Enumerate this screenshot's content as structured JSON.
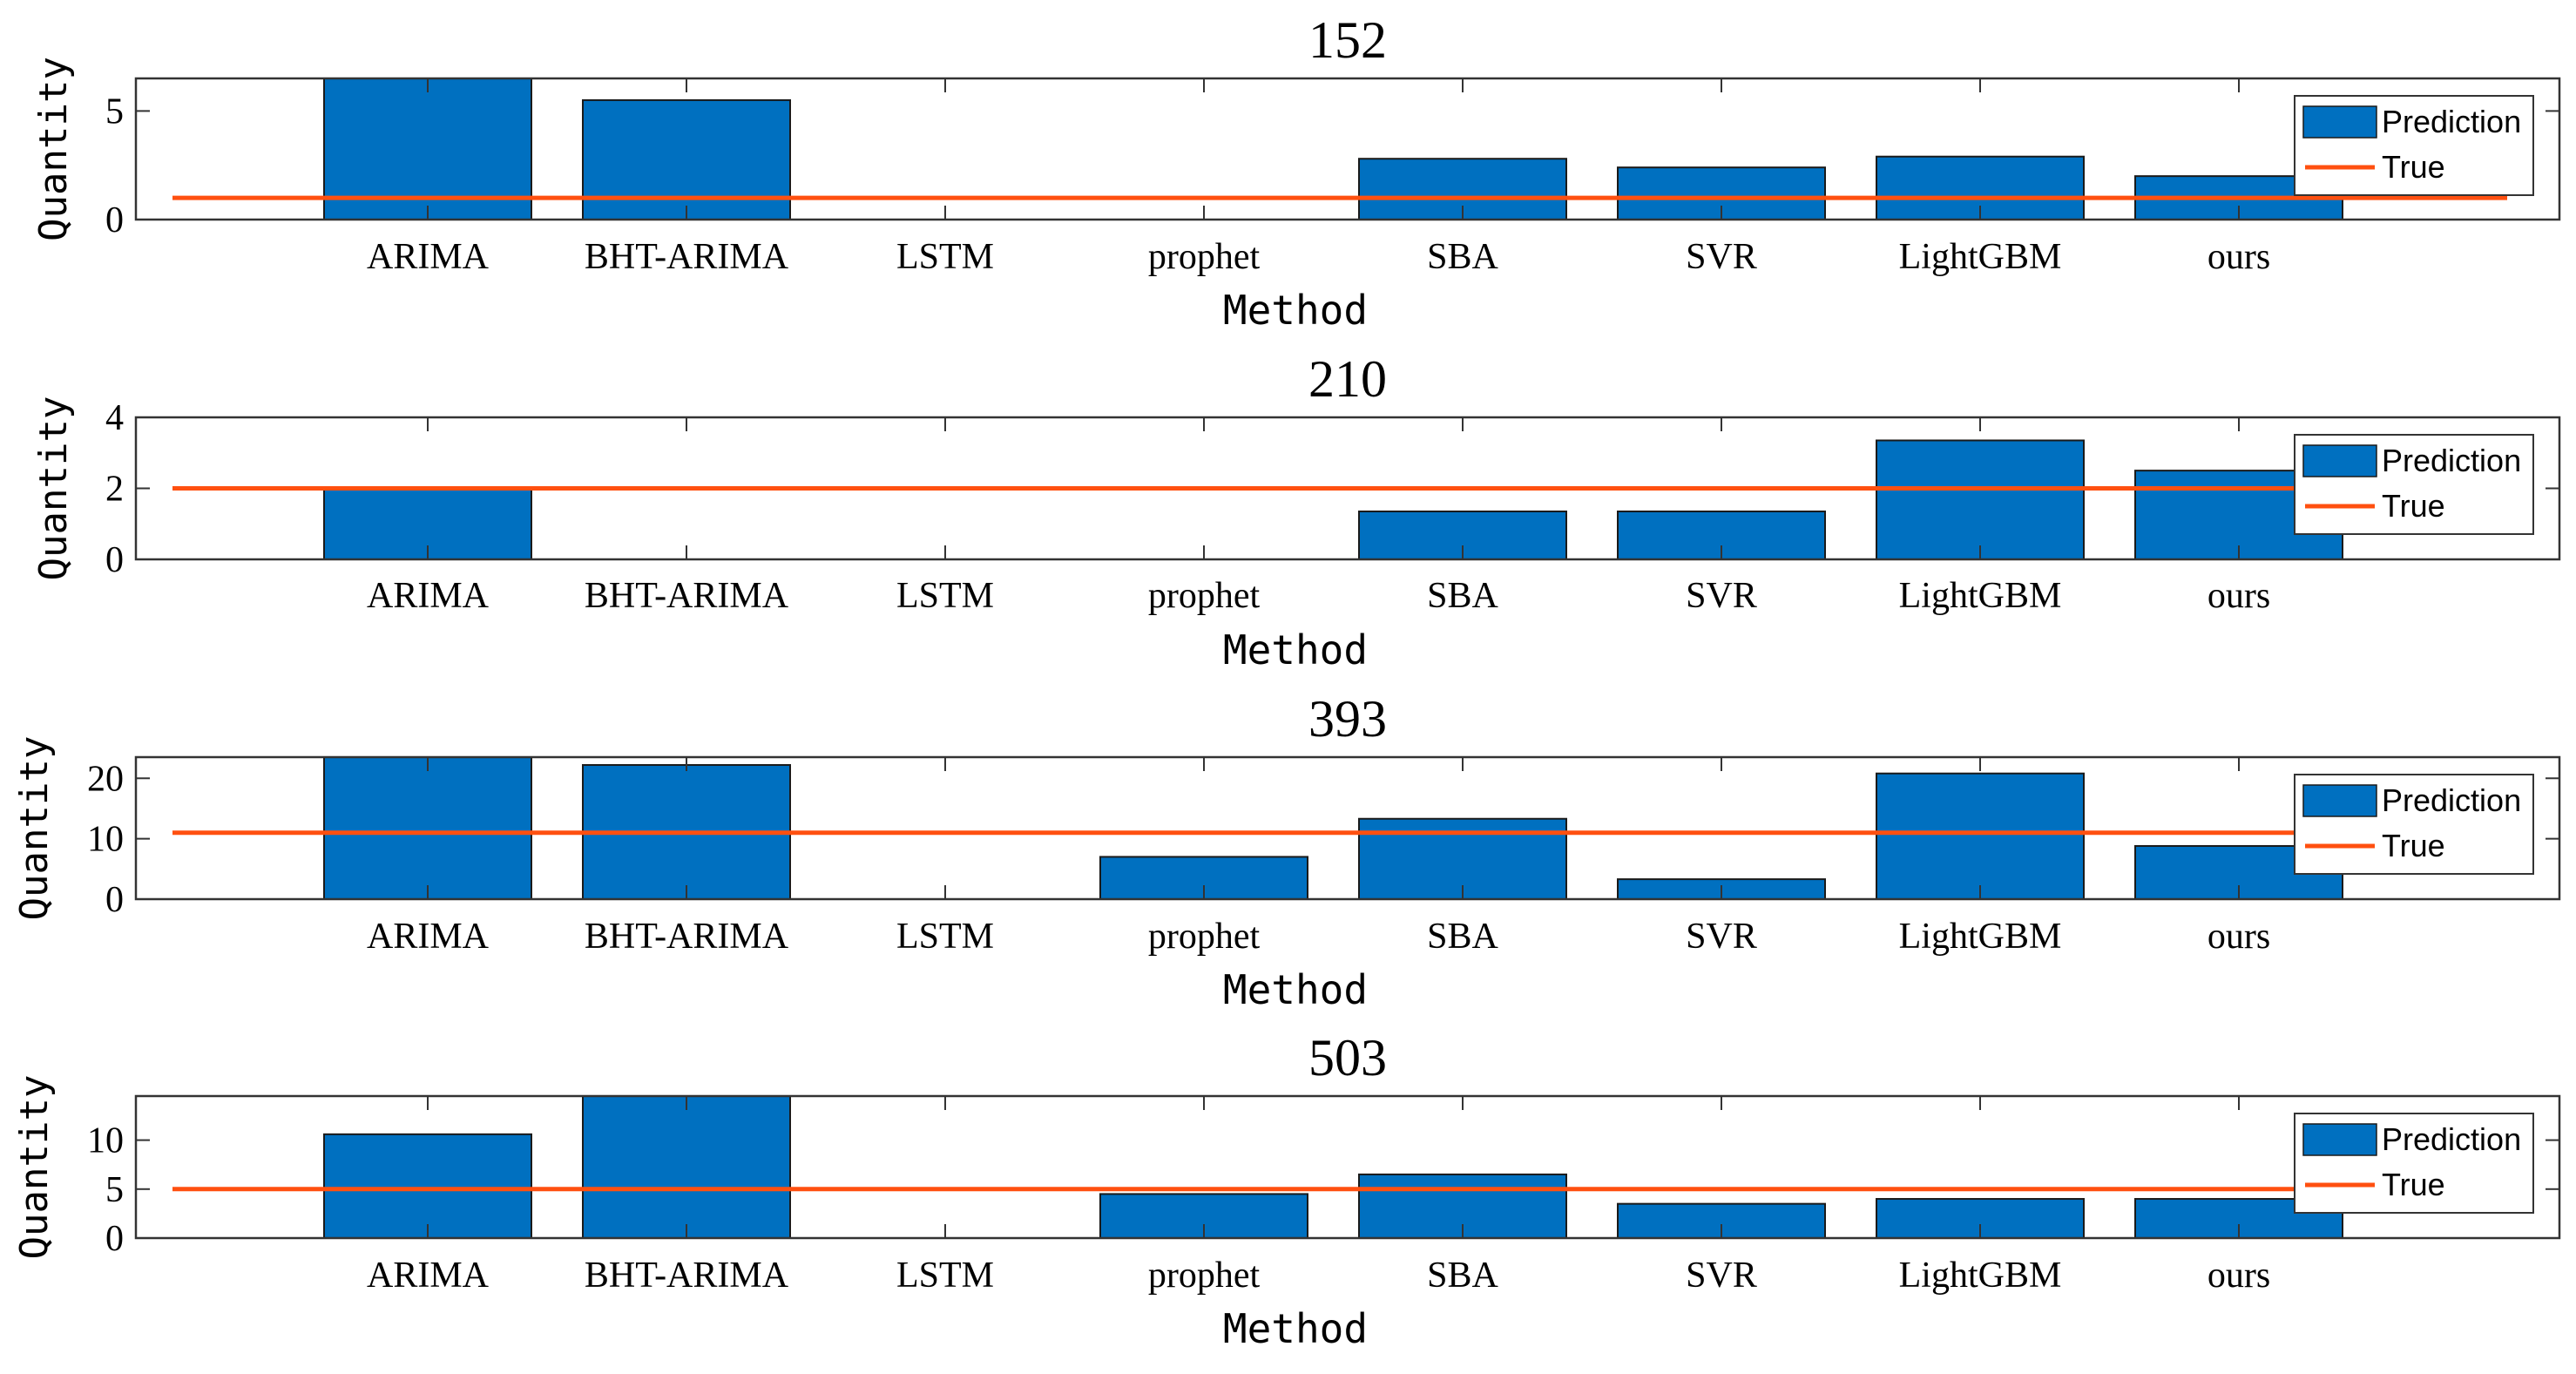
{
  "colors": {
    "prediction": "#0070C0",
    "true_line": "#FF5010",
    "axes": "#333333"
  },
  "chart_data": [
    {
      "type": "bar",
      "title": "152",
      "xlabel": "Method",
      "ylabel": "Quantity",
      "categories": [
        "ARIMA",
        "BHT-ARIMA",
        "LSTM",
        "prophet",
        "SBA",
        "SVR",
        "LightGBM",
        "ours"
      ],
      "ylim": [
        0,
        6.5
      ],
      "yticks": [
        0,
        5
      ],
      "series": [
        {
          "name": "Prediction",
          "type": "bar",
          "values": [
            6.5,
            5.5,
            0,
            0,
            2.8,
            2.4,
            2.9,
            2.0
          ]
        },
        {
          "name": "True",
          "type": "line",
          "value": 1
        }
      ],
      "legend": "top-right",
      "grid": false
    },
    {
      "type": "bar",
      "title": "210",
      "xlabel": "Method",
      "ylabel": "Quantity",
      "categories": [
        "ARIMA",
        "BHT-ARIMA",
        "LSTM",
        "prophet",
        "SBA",
        "SVR",
        "LightGBM",
        "ours"
      ],
      "ylim": [
        0,
        4
      ],
      "yticks": [
        0,
        2,
        4
      ],
      "series": [
        {
          "name": "Prediction",
          "type": "bar",
          "values": [
            2.0,
            0,
            0,
            0,
            1.35,
            1.35,
            3.35,
            2.5
          ]
        },
        {
          "name": "True",
          "type": "line",
          "value": 2
        }
      ],
      "legend": "top-right",
      "grid": false
    },
    {
      "type": "bar",
      "title": "393",
      "xlabel": "Method",
      "ylabel": "Quantity",
      "categories": [
        "ARIMA",
        "BHT-ARIMA",
        "LSTM",
        "prophet",
        "SBA",
        "SVR",
        "LightGBM",
        "ours"
      ],
      "ylim": [
        0,
        23.5
      ],
      "yticks": [
        0,
        10,
        20
      ],
      "series": [
        {
          "name": "Prediction",
          "type": "bar",
          "values": [
            23.5,
            22.2,
            0,
            7.0,
            13.3,
            3.3,
            20.8,
            8.8
          ]
        },
        {
          "name": "True",
          "type": "line",
          "value": 11
        }
      ],
      "legend": "top-right",
      "grid": false
    },
    {
      "type": "bar",
      "title": "503",
      "xlabel": "Method",
      "ylabel": "Quantity",
      "categories": [
        "ARIMA",
        "BHT-ARIMA",
        "LSTM",
        "prophet",
        "SBA",
        "SVR",
        "LightGBM",
        "ours"
      ],
      "ylim": [
        0,
        14.5
      ],
      "yticks": [
        0,
        5,
        10
      ],
      "series": [
        {
          "name": "Prediction",
          "type": "bar",
          "values": [
            10.6,
            14.5,
            0,
            4.5,
            6.5,
            3.5,
            4.0,
            4.0
          ]
        },
        {
          "name": "True",
          "type": "line",
          "value": 5
        }
      ],
      "legend": "top-right",
      "grid": false
    }
  ]
}
